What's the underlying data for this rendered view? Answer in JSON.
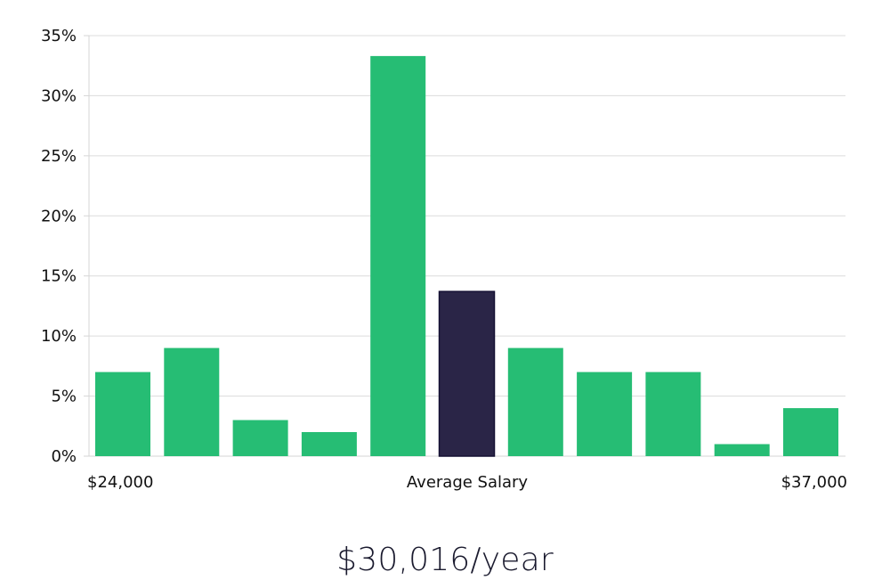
{
  "chart_data": {
    "type": "bar",
    "values": [
      7,
      9,
      3,
      2,
      33.3,
      13.7,
      9,
      7,
      7,
      1,
      4
    ],
    "highlight_index": 5,
    "colors": {
      "bar": "#26bd74",
      "highlight": "#2a2547",
      "highlight_stroke": "#141033",
      "grid": "#dcdcdc"
    },
    "ylim": [
      0,
      35
    ],
    "y_ticks": [
      {
        "value": 0,
        "label": "0%"
      },
      {
        "value": 5,
        "label": "5%"
      },
      {
        "value": 10,
        "label": "10%"
      },
      {
        "value": 15,
        "label": "15%"
      },
      {
        "value": 20,
        "label": "20%"
      },
      {
        "value": 25,
        "label": "25%"
      },
      {
        "value": 30,
        "label": "30%"
      },
      {
        "value": 35,
        "label": "35%"
      }
    ],
    "x_labels": {
      "min": "$24,000",
      "center": "Average Salary",
      "max": "$37,000"
    },
    "grid": true
  },
  "summary": {
    "salary_text": "$30,016/year"
  }
}
